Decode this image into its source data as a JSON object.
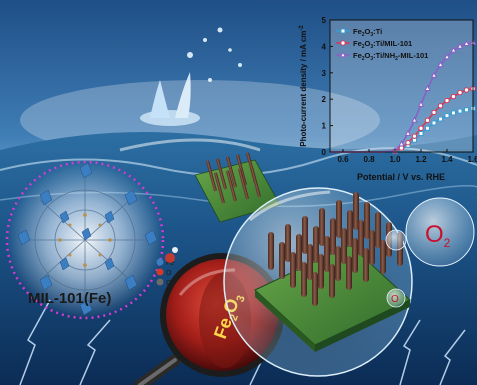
{
  "scene": {
    "mof_label": "MIL-101(Fe)",
    "electrode_label_main": "Fe",
    "electrode_label_sub1": "2",
    "electrode_label_mid": "O",
    "electrode_label_sub2": "3",
    "o2_label_main": "O",
    "o2_label_sub": "2",
    "small_o_label": "O",
    "atom_legend": [
      "Fe",
      "O",
      "C"
    ]
  },
  "chart_data": {
    "type": "line",
    "xlabel": "Potential / V vs. RHE",
    "ylabel": "Photo-current density / mA cm",
    "ylabel_sup": "-2",
    "xlim": [
      0.5,
      1.6
    ],
    "ylim": [
      0,
      5
    ],
    "xticks": [
      "0.6",
      "0.8",
      "1.0",
      "1.2",
      "1.4",
      "1.6"
    ],
    "yticks": [
      "0",
      "1",
      "2",
      "3",
      "4",
      "5"
    ],
    "series": [
      {
        "name": "Fe2O3:Ti",
        "legend_main": "Fe",
        "legend_rest": "O",
        "legend_tail": ":Ti",
        "color": "#3a9bd0",
        "marker": "square",
        "x": [
          0.5,
          0.6,
          0.7,
          0.8,
          0.9,
          1.0,
          1.05,
          1.1,
          1.15,
          1.2,
          1.25,
          1.3,
          1.35,
          1.4,
          1.45,
          1.5,
          1.55,
          1.6
        ],
        "y": [
          0.0,
          0.0,
          0.0,
          0.0,
          0.0,
          0.02,
          0.1,
          0.25,
          0.45,
          0.7,
          0.9,
          1.1,
          1.25,
          1.38,
          1.48,
          1.55,
          1.6,
          1.65
        ]
      },
      {
        "name": "Fe2O3:Ti/MIL-101",
        "legend_main": "Fe",
        "legend_rest": "O",
        "legend_tail": ":Ti/MIL-101",
        "color": "#d23a5a",
        "marker": "circle",
        "x": [
          0.5,
          0.6,
          0.7,
          0.8,
          0.9,
          1.0,
          1.05,
          1.1,
          1.15,
          1.2,
          1.25,
          1.3,
          1.35,
          1.4,
          1.45,
          1.5,
          1.55,
          1.6
        ],
        "y": [
          0.0,
          0.0,
          0.0,
          0.0,
          0.0,
          0.03,
          0.15,
          0.35,
          0.6,
          0.9,
          1.2,
          1.5,
          1.75,
          1.95,
          2.1,
          2.25,
          2.35,
          2.4
        ]
      },
      {
        "name": "Fe2O3:Ti/NH2-MIL-101",
        "legend_main": "Fe",
        "legend_rest": "O",
        "legend_tail": ":Ti/NH",
        "legend_tail2": "-MIL-101",
        "color": "#8a5fc8",
        "marker": "triangle",
        "x": [
          0.5,
          0.6,
          0.7,
          0.8,
          0.9,
          1.0,
          1.05,
          1.1,
          1.15,
          1.2,
          1.25,
          1.3,
          1.35,
          1.4,
          1.45,
          1.5,
          1.55,
          1.6
        ],
        "y": [
          0.0,
          0.0,
          0.0,
          0.0,
          0.0,
          0.05,
          0.3,
          0.7,
          1.2,
          1.8,
          2.4,
          2.9,
          3.3,
          3.6,
          3.85,
          4.0,
          4.1,
          4.15
        ]
      }
    ]
  }
}
